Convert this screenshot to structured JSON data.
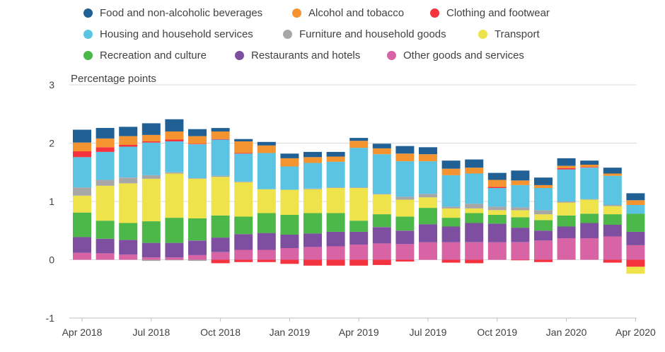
{
  "legend": [
    {
      "name": "Food and non-alcoholic beverages",
      "color": "#206095"
    },
    {
      "name": "Alcohol and tobacco",
      "color": "#F39431"
    },
    {
      "name": "Clothing and footwear",
      "color": "#F5333F"
    },
    {
      "name": "Housing and household services",
      "color": "#5BC4E2"
    },
    {
      "name": "Furniture and household goods",
      "color": "#A7A7A7"
    },
    {
      "name": "Transport",
      "color": "#EEE34A"
    },
    {
      "name": "Recreation and culture",
      "color": "#4BB849"
    },
    {
      "name": "Restaurants and hotels",
      "color": "#7E4FA0"
    },
    {
      "name": "Other goods and services",
      "color": "#D864A6"
    }
  ],
  "chart_data": {
    "type": "bar",
    "stacked": true,
    "ylabel": "Percentage points",
    "ylim": [
      -1,
      3
    ],
    "yticks": [
      "3",
      "2",
      "1",
      "0",
      "-1"
    ],
    "xtick_labels": [
      "Apr 2018",
      "Jul 2018",
      "Oct 2018",
      "Jan 2019",
      "Apr 2019",
      "Jul 2019",
      "Oct 2019",
      "Jan 2020",
      "Apr 2020"
    ],
    "categories": [
      "Apr 2018",
      "May 2018",
      "Jun 2018",
      "Jul 2018",
      "Aug 2018",
      "Sep 2018",
      "Oct 2018",
      "Nov 2018",
      "Dec 2018",
      "Jan 2019",
      "Feb 2019",
      "Mar 2019",
      "Apr 2019",
      "May 2019",
      "Jun 2019",
      "Jul 2019",
      "Aug 2019",
      "Sep 2019",
      "Oct 2019",
      "Nov 2019",
      "Dec 2019",
      "Jan 2020",
      "Feb 2020",
      "Mar 2020",
      "Apr 2020"
    ],
    "grid": true,
    "legend_position": "top",
    "series": [
      {
        "name": "Other goods and services",
        "color": "#D864A6",
        "values": [
          0.12,
          0.11,
          0.09,
          0.04,
          0.04,
          0.08,
          0.13,
          0.17,
          0.17,
          0.2,
          0.22,
          0.23,
          0.26,
          0.28,
          0.27,
          0.3,
          0.3,
          0.3,
          0.3,
          0.3,
          0.33,
          0.37,
          0.37,
          0.4,
          0.25
        ]
      },
      {
        "name": "Restaurants and hotels",
        "color": "#7E4FA0",
        "values": [
          0.27,
          0.25,
          0.25,
          0.25,
          0.25,
          0.25,
          0.25,
          0.27,
          0.29,
          0.23,
          0.23,
          0.25,
          0.22,
          0.28,
          0.23,
          0.31,
          0.27,
          0.33,
          0.32,
          0.25,
          0.17,
          0.2,
          0.26,
          0.2,
          0.23
        ]
      },
      {
        "name": "Recreation and culture",
        "color": "#4BB849",
        "values": [
          0.42,
          0.31,
          0.29,
          0.37,
          0.43,
          0.38,
          0.38,
          0.3,
          0.34,
          0.34,
          0.35,
          0.32,
          0.19,
          0.22,
          0.24,
          0.28,
          0.15,
          0.17,
          0.15,
          0.18,
          0.18,
          0.19,
          0.16,
          0.18,
          0.31
        ]
      },
      {
        "name": "Transport",
        "color": "#EEE34A",
        "values": [
          0.29,
          0.6,
          0.68,
          0.73,
          0.76,
          0.68,
          0.66,
          0.59,
          0.41,
          0.43,
          0.41,
          0.43,
          0.56,
          0.34,
          0.29,
          0.18,
          0.16,
          0.08,
          0.08,
          0.12,
          0.1,
          0.22,
          0.24,
          0.14,
          0.0
        ]
      },
      {
        "name": "Furniture and household goods",
        "color": "#A7A7A7",
        "values": [
          0.14,
          0.1,
          0.1,
          0.06,
          0.02,
          0.01,
          0.02,
          0.01,
          0.0,
          0.0,
          0.01,
          0.01,
          0.01,
          0.01,
          0.05,
          0.06,
          0.03,
          0.08,
          0.06,
          0.05,
          0.07,
          0.02,
          0.01,
          0.02,
          0.0
        ]
      },
      {
        "name": "Housing and household services",
        "color": "#5BC4E2",
        "values": [
          0.52,
          0.48,
          0.53,
          0.56,
          0.53,
          0.58,
          0.62,
          0.48,
          0.62,
          0.4,
          0.44,
          0.44,
          0.68,
          0.68,
          0.61,
          0.56,
          0.54,
          0.52,
          0.32,
          0.38,
          0.38,
          0.55,
          0.54,
          0.5,
          0.15
        ]
      },
      {
        "name": "Clothing and footwear",
        "color": "#F5333F",
        "values": [
          0.1,
          0.08,
          0.03,
          0.02,
          0.03,
          0.01,
          0.01,
          0.01,
          0.0,
          0.0,
          0.0,
          0.0,
          0.0,
          0.0,
          0.0,
          0.0,
          0.0,
          0.0,
          0.02,
          0.0,
          0.0,
          0.02,
          0.01,
          0.0,
          0.0
        ]
      },
      {
        "name": "Alcohol and tobacco",
        "color": "#F39431",
        "values": [
          0.15,
          0.15,
          0.15,
          0.11,
          0.14,
          0.13,
          0.13,
          0.2,
          0.13,
          0.14,
          0.1,
          0.09,
          0.12,
          0.1,
          0.13,
          0.12,
          0.11,
          0.1,
          0.12,
          0.08,
          0.05,
          0.04,
          0.04,
          0.04,
          0.08
        ]
      },
      {
        "name": "Food and non-alcoholic beverages",
        "color": "#206095",
        "values": [
          0.22,
          0.18,
          0.16,
          0.2,
          0.21,
          0.12,
          0.06,
          0.04,
          0.06,
          0.08,
          0.09,
          0.08,
          0.05,
          0.08,
          0.13,
          0.12,
          0.14,
          0.14,
          0.12,
          0.17,
          0.13,
          0.13,
          0.07,
          0.1,
          0.12
        ]
      },
      {
        "name": "Clothing and footwear",
        "color": "#F5333F",
        "negative": true,
        "values": [
          0,
          0,
          0,
          0,
          0,
          0,
          -0.06,
          -0.04,
          -0.04,
          -0.07,
          -0.1,
          -0.1,
          -0.1,
          -0.09,
          -0.03,
          0,
          -0.05,
          -0.06,
          0,
          -0.01,
          -0.04,
          0,
          0,
          -0.05,
          -0.12
        ]
      },
      {
        "name": "Food and non-alcoholic beverages",
        "color": "#206095",
        "negative": true,
        "values": [
          0,
          0,
          0,
          0,
          0,
          0,
          0,
          0,
          0,
          0,
          0,
          0,
          0,
          0,
          0,
          0,
          0,
          0,
          0,
          0,
          0,
          0,
          0,
          0,
          0
        ]
      },
      {
        "name": "Furniture and household goods",
        "color": "#A7A7A7",
        "negative": true,
        "values": [
          0,
          0,
          0,
          -0.02,
          -0.01,
          -0.02,
          0,
          0,
          0,
          0,
          0,
          0,
          0,
          0,
          0,
          0,
          0,
          0,
          0,
          0,
          0,
          0,
          0,
          0,
          0
        ]
      },
      {
        "name": "Transport",
        "color": "#EEE34A",
        "negative": true,
        "values": [
          0,
          0,
          0,
          0,
          0,
          0,
          0,
          0,
          0,
          0,
          0,
          0,
          0,
          0,
          0,
          0,
          0,
          0,
          0,
          0,
          0,
          0,
          0,
          0,
          -0.12
        ]
      }
    ]
  }
}
